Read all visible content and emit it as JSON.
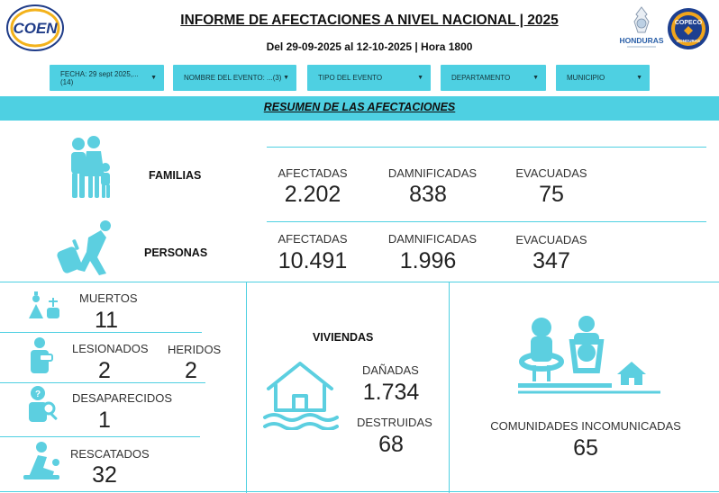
{
  "header": {
    "title": "INFORME DE AFECTACIONES A NIVEL NACIONAL | 2025",
    "subtitle": "Del 29-09-2025 al 12-10-2025 | Hora 1800",
    "logo_left_text": "COEN",
    "logo_right1_text": "HONDURAS",
    "logo_right2_text": "COPECO",
    "logo_right2_sub": "HONDURAS"
  },
  "filters": [
    {
      "label": "FECHA: 29 sept 2025,...(14)"
    },
    {
      "label": "NOMBRE DEL EVENTO: ...(3)"
    },
    {
      "label": "TIPO DEL EVENTO"
    },
    {
      "label": "DEPARTAMENTO"
    },
    {
      "label": "MUNICIPIO"
    }
  ],
  "section_title": "RESUMEN DE LAS AFECTACIONES",
  "familias": {
    "label": "FAMILIAS",
    "afectadas_label": "AFECTADAS",
    "afectadas": "2.202",
    "damnificadas_label": "DAMNIFICADAS",
    "damnificadas": "838",
    "evacuadas_label": "EVACUADAS",
    "evacuadas": "75"
  },
  "personas": {
    "label": "PERSONAS",
    "afectadas_label": "AFECTADAS",
    "afectadas": "10.491",
    "damnificadas_label": "DAMNIFICADAS",
    "damnificadas": "1.996",
    "evacuadas_label": "EVACUADAS",
    "evacuadas": "347"
  },
  "muertos": {
    "label": "MUERTOS",
    "value": "11"
  },
  "lesionados": {
    "label": "LESIONADOS",
    "value": "2"
  },
  "heridos": {
    "label": "HERIDOS",
    "value": "2"
  },
  "desaparecidos": {
    "label": "DESAPARECIDOS",
    "value": "1"
  },
  "rescatados": {
    "label": "RESCATADOS",
    "value": "32"
  },
  "viviendas": {
    "label": "VIVIENDAS",
    "danadas_label": "DAÑADAS",
    "danadas": "1.734",
    "destruidas_label": "DESTRUIDAS",
    "destruidas": "68"
  },
  "comunidades": {
    "label": "COMUNIDADES INCOMUNICADAS",
    "value": "65"
  },
  "colors": {
    "accent": "#4ed0e2",
    "icon": "#5ccfe0",
    "text": "#222222"
  }
}
